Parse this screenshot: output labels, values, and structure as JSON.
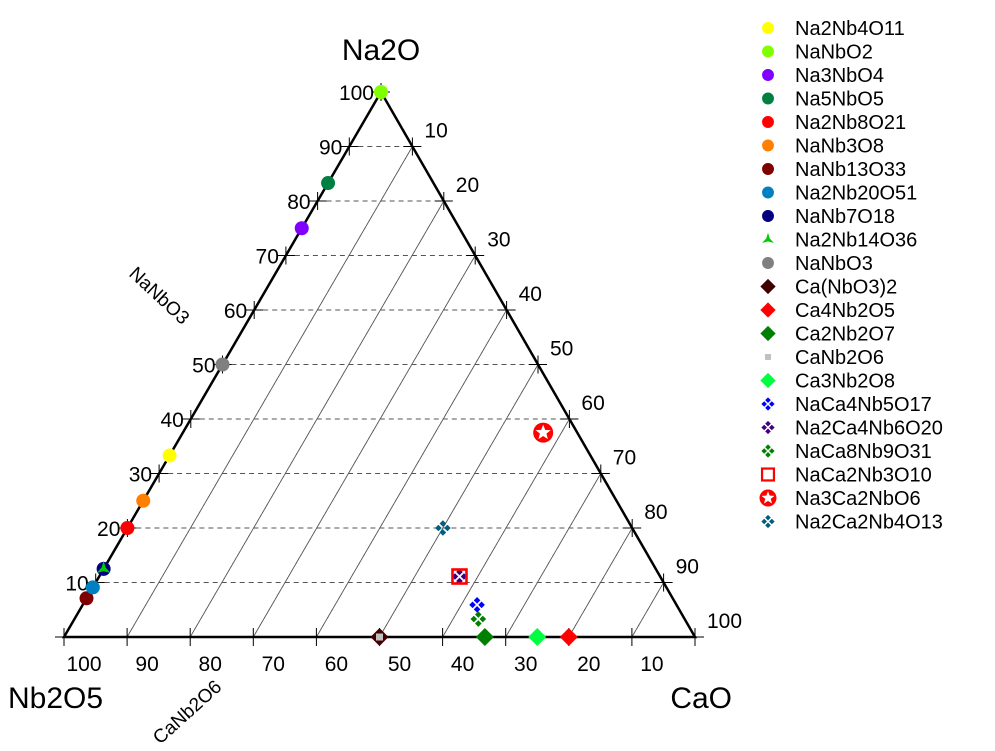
{
  "chart_data": {
    "type": "scatter",
    "subtype": "ternary",
    "vertices": {
      "top": "Na2O",
      "left": "Nb2O5",
      "right": "CaO"
    },
    "ticks": {
      "left_edge": [
        "10",
        "20",
        "30",
        "40",
        "50",
        "60",
        "70",
        "80",
        "90",
        "100"
      ],
      "right_edge": [
        "10",
        "20",
        "30",
        "40",
        "50",
        "60",
        "70",
        "80",
        "90",
        "100"
      ],
      "bottom_edge": [
        "100",
        "90",
        "80",
        "70",
        "60",
        "50",
        "40",
        "30",
        "20",
        "10"
      ]
    },
    "grid": true,
    "grid_step": 10,
    "legend_position": "right",
    "annotations": [
      {
        "text": "NaNbO3",
        "on": "left-edge"
      },
      {
        "text": "CaNb2O6",
        "on": "bottom-edge"
      }
    ],
    "series": [
      {
        "name": "Na2Nb4O11",
        "na2o": 33.3,
        "cao": 0,
        "marker": "circle",
        "color": "#ffff00"
      },
      {
        "name": "NaNbO2",
        "na2o": 100,
        "cao": 0,
        "marker": "circle",
        "color": "#80ff00"
      },
      {
        "name": "Na3NbO4",
        "na2o": 75,
        "cao": 0,
        "marker": "circle",
        "color": "#8000ff"
      },
      {
        "name": "Na5NbO5",
        "na2o": 83.3,
        "cao": 0,
        "marker": "circle",
        "color": "#008040"
      },
      {
        "name": "Na2Nb8O21",
        "na2o": 20,
        "cao": 0,
        "marker": "circle",
        "color": "#ff0000"
      },
      {
        "name": "NaNb3O8",
        "na2o": 25,
        "cao": 0,
        "marker": "circle",
        "color": "#ff8000"
      },
      {
        "name": "NaNb13O33",
        "na2o": 7.1,
        "cao": 0,
        "marker": "circle",
        "color": "#800000"
      },
      {
        "name": "Na2Nb20O51",
        "na2o": 9.1,
        "cao": 0,
        "marker": "circle",
        "color": "#0080c0"
      },
      {
        "name": "NaNb7O18",
        "na2o": 12.5,
        "cao": 0,
        "marker": "circle",
        "color": "#000080"
      },
      {
        "name": "Na2Nb14O36",
        "na2o": 12.5,
        "cao": 0,
        "marker": "tri-star",
        "color": "#00cc00"
      },
      {
        "name": "NaNbO3",
        "na2o": 50,
        "cao": 0,
        "marker": "circle",
        "color": "#808080"
      },
      {
        "name": "Ca(NbO3)2",
        "na2o": 0,
        "cao": 50,
        "marker": "diamond",
        "color": "#400000"
      },
      {
        "name": "Ca4Nb2O5",
        "na2o": 0,
        "cao": 80,
        "marker": "diamond",
        "color": "#ff0000"
      },
      {
        "name": "Ca2Nb2O7",
        "na2o": 0,
        "cao": 66.7,
        "marker": "diamond",
        "color": "#008000"
      },
      {
        "name": "CaNb2O6",
        "na2o": 0,
        "cao": 50,
        "marker": "square-small",
        "color": "#c0c0c0"
      },
      {
        "name": "Ca3Nb2O8",
        "na2o": 0,
        "cao": 75,
        "marker": "diamond",
        "color": "#00ff40"
      },
      {
        "name": "NaCa4Nb5O17",
        "na2o": 5.9,
        "cao": 62.5,
        "marker": "cross-diamonds",
        "color": "#0000ff"
      },
      {
        "name": "Na2Ca4Nb6O20",
        "na2o": 11.1,
        "cao": 57.1,
        "marker": "cross-diamonds",
        "color": "#400080"
      },
      {
        "name": "NaCa8Nb9O31",
        "na2o": 3.3,
        "cao": 64,
        "marker": "cross-diamonds",
        "color": "#008000"
      },
      {
        "name": "NaCa2Nb3O10",
        "na2o": 11.1,
        "cao": 57.1,
        "marker": "open-square",
        "color": "#ff0000"
      },
      {
        "name": "Na3Ca2NbO6",
        "na2o": 37.5,
        "cao": 57.1,
        "marker": "star-circle",
        "color": "#ff0000"
      },
      {
        "name": "Na2Ca2Nb4O13",
        "na2o": 20,
        "cao": 50,
        "marker": "cross-diamonds",
        "color": "#005f7f"
      }
    ]
  }
}
